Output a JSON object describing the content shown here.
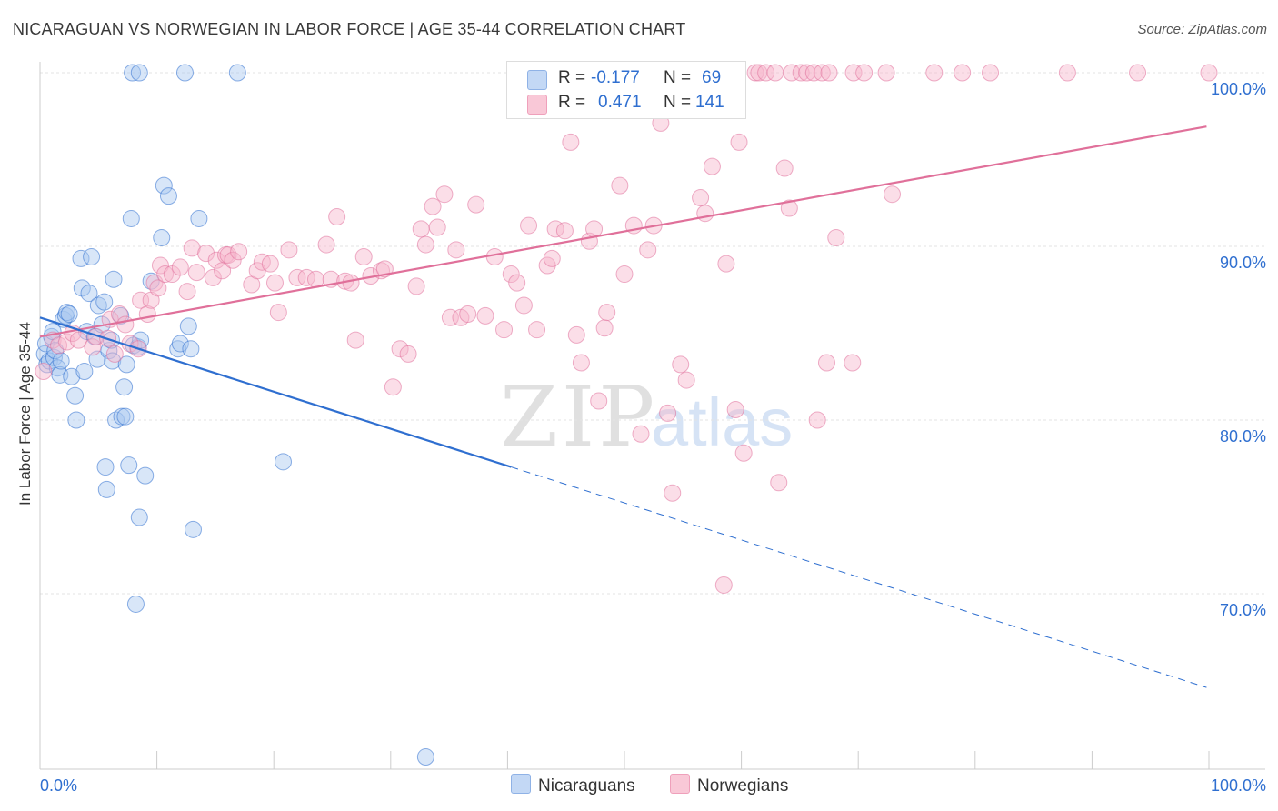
{
  "header": {
    "title": "NICARAGUAN VS NORWEGIAN IN LABOR FORCE | AGE 35-44 CORRELATION CHART",
    "source": "Source: ZipAtlas.com"
  },
  "watermark": {
    "zip": "ZIP",
    "atlas": "atlas"
  },
  "legend": {
    "r_label": "R =",
    "n_label": "N =",
    "nicaraguans": {
      "r": "-0.177",
      "n": "69"
    },
    "norwegians": {
      "r": "0.471",
      "n": "141"
    }
  },
  "bottom_legend": {
    "nicaraguans": "Nicaraguans",
    "norwegians": "Norwegians"
  },
  "chart_data": {
    "type": "scatter",
    "title": "NICARAGUAN VS NORWEGIAN IN LABOR FORCE | AGE 35-44 CORRELATION CHART",
    "xlabel": "",
    "ylabel": "In Labor Force | Age 35-44",
    "xlim": [
      0,
      100
    ],
    "ylim": [
      60,
      101
    ],
    "x_tick_labels": [
      "0.0%",
      "100.0%"
    ],
    "y_ticks": [
      {
        "value": 70,
        "label": "70.0%"
      },
      {
        "value": 80,
        "label": "80.0%"
      },
      {
        "value": 90,
        "label": "90.0%"
      },
      {
        "value": 100,
        "label": "100.0%"
      }
    ],
    "grid": true,
    "colors": {
      "nicaraguans_fill": "#a9c8f0",
      "nicaraguans_line": "#2f6fd0",
      "norwegians_fill": "#f7b6cb",
      "norwegians_line": "#e0709a",
      "axis_label": "#2f6fd0",
      "grid": "#e3e3e3"
    },
    "series": [
      {
        "name": "Nicaraguans",
        "r": -0.177,
        "n": 69,
        "trend": {
          "x0": 0,
          "y0": 85.9,
          "x1": 40.3,
          "y1": 77.3,
          "x_dash_end": 99.8,
          "y_dash_end": 64.6
        },
        "points": [
          [
            0.4,
            83.8
          ],
          [
            0.5,
            84.4
          ],
          [
            0.6,
            83.2
          ],
          [
            0.8,
            83.4
          ],
          [
            1.0,
            84.8
          ],
          [
            1.1,
            85.1
          ],
          [
            1.2,
            83.6
          ],
          [
            1.3,
            84.0
          ],
          [
            1.5,
            83.0
          ],
          [
            1.7,
            82.6
          ],
          [
            1.8,
            83.4
          ],
          [
            2.0,
            85.8
          ],
          [
            2.2,
            86.0
          ],
          [
            2.3,
            86.2
          ],
          [
            2.5,
            86.1
          ],
          [
            2.7,
            82.5
          ],
          [
            3.0,
            81.4
          ],
          [
            3.1,
            80.0
          ],
          [
            3.5,
            89.3
          ],
          [
            3.6,
            87.6
          ],
          [
            3.8,
            82.8
          ],
          [
            4.0,
            85.1
          ],
          [
            4.2,
            87.3
          ],
          [
            4.4,
            89.4
          ],
          [
            4.7,
            84.8
          ],
          [
            4.9,
            83.5
          ],
          [
            5.0,
            86.6
          ],
          [
            5.3,
            85.5
          ],
          [
            5.5,
            86.8
          ],
          [
            5.6,
            77.3
          ],
          [
            5.7,
            76.0
          ],
          [
            5.9,
            84.0
          ],
          [
            6.1,
            84.6
          ],
          [
            6.2,
            83.4
          ],
          [
            6.3,
            88.1
          ],
          [
            6.5,
            80.0
          ],
          [
            6.9,
            86.0
          ],
          [
            7.0,
            80.2
          ],
          [
            7.2,
            81.9
          ],
          [
            7.3,
            80.2
          ],
          [
            7.4,
            83.2
          ],
          [
            7.6,
            77.4
          ],
          [
            7.8,
            91.6
          ],
          [
            8.0,
            84.3
          ],
          [
            8.2,
            69.4
          ],
          [
            8.4,
            84.2
          ],
          [
            8.5,
            74.4
          ],
          [
            8.6,
            84.6
          ],
          [
            9.0,
            76.8
          ],
          [
            9.5,
            88.0
          ],
          [
            10.4,
            90.5
          ],
          [
            10.6,
            93.5
          ],
          [
            11.0,
            92.9
          ],
          [
            11.8,
            84.1
          ],
          [
            12.0,
            84.4
          ],
          [
            12.7,
            85.4
          ],
          [
            12.9,
            84.1
          ],
          [
            13.1,
            73.7
          ],
          [
            13.6,
            91.6
          ],
          [
            20.8,
            77.6
          ],
          [
            33.0,
            60.6
          ],
          [
            7.9,
            100
          ],
          [
            8.5,
            100
          ],
          [
            12.4,
            100
          ],
          [
            16.9,
            100
          ]
        ]
      },
      {
        "name": "Norwegians",
        "r": 0.471,
        "n": 141,
        "trend": {
          "x0": 0,
          "y0": 84.8,
          "x1": 99.8,
          "y1": 96.9
        },
        "points": [
          [
            0.3,
            82.8
          ],
          [
            1.1,
            84.6
          ],
          [
            1.6,
            84.3
          ],
          [
            2.3,
            84.5
          ],
          [
            2.8,
            85.0
          ],
          [
            3.3,
            84.6
          ],
          [
            4.5,
            84.2
          ],
          [
            4.8,
            84.8
          ],
          [
            5.8,
            84.7
          ],
          [
            6.0,
            85.8
          ],
          [
            6.4,
            83.8
          ],
          [
            6.8,
            86.1
          ],
          [
            7.3,
            85.5
          ],
          [
            7.7,
            84.4
          ],
          [
            8.4,
            84.1
          ],
          [
            8.6,
            86.9
          ],
          [
            9.2,
            86.1
          ],
          [
            9.5,
            86.9
          ],
          [
            9.8,
            87.9
          ],
          [
            10.1,
            87.6
          ],
          [
            10.3,
            88.9
          ],
          [
            10.7,
            88.4
          ],
          [
            11.3,
            88.4
          ],
          [
            12.0,
            88.8
          ],
          [
            12.6,
            87.4
          ],
          [
            13.0,
            89.9
          ],
          [
            13.4,
            88.5
          ],
          [
            14.2,
            89.6
          ],
          [
            14.8,
            88.2
          ],
          [
            15.1,
            89.2
          ],
          [
            15.6,
            88.6
          ],
          [
            15.9,
            89.5
          ],
          [
            16.1,
            89.5
          ],
          [
            16.5,
            89.2
          ],
          [
            17.0,
            89.7
          ],
          [
            18.1,
            87.8
          ],
          [
            18.6,
            88.6
          ],
          [
            19.0,
            89.1
          ],
          [
            19.7,
            89.0
          ],
          [
            20.1,
            87.9
          ],
          [
            20.4,
            86.2
          ],
          [
            21.3,
            89.8
          ],
          [
            22.0,
            88.2
          ],
          [
            22.8,
            88.2
          ],
          [
            23.6,
            88.1
          ],
          [
            24.5,
            90.1
          ],
          [
            24.9,
            88.1
          ],
          [
            25.4,
            91.7
          ],
          [
            26.1,
            88.0
          ],
          [
            26.6,
            87.9
          ],
          [
            27.0,
            84.6
          ],
          [
            27.7,
            89.4
          ],
          [
            28.3,
            88.3
          ],
          [
            29.2,
            88.6
          ],
          [
            29.5,
            88.7
          ],
          [
            30.2,
            81.9
          ],
          [
            30.8,
            84.1
          ],
          [
            31.5,
            83.8
          ],
          [
            32.2,
            87.7
          ],
          [
            32.6,
            91.0
          ],
          [
            33.0,
            90.1
          ],
          [
            33.6,
            92.3
          ],
          [
            34.0,
            91.1
          ],
          [
            34.6,
            93.0
          ],
          [
            35.1,
            85.9
          ],
          [
            35.6,
            89.8
          ],
          [
            36.0,
            85.9
          ],
          [
            36.6,
            86.1
          ],
          [
            37.3,
            92.4
          ],
          [
            38.1,
            86.0
          ],
          [
            38.9,
            89.4
          ],
          [
            39.7,
            85.2
          ],
          [
            40.3,
            88.4
          ],
          [
            40.8,
            87.9
          ],
          [
            41.4,
            86.6
          ],
          [
            41.8,
            91.2
          ],
          [
            42.5,
            85.2
          ],
          [
            43.4,
            88.9
          ],
          [
            43.8,
            89.3
          ],
          [
            44.1,
            91.0
          ],
          [
            44.9,
            90.9
          ],
          [
            45.4,
            96.0
          ],
          [
            45.9,
            84.9
          ],
          [
            46.3,
            83.3
          ],
          [
            47.0,
            90.3
          ],
          [
            47.4,
            91.0
          ],
          [
            47.8,
            81.1
          ],
          [
            48.3,
            85.3
          ],
          [
            48.5,
            86.2
          ],
          [
            49.6,
            93.5
          ],
          [
            50.0,
            88.4
          ],
          [
            50.8,
            91.2
          ],
          [
            51.4,
            79.2
          ],
          [
            52.0,
            89.8
          ],
          [
            52.5,
            91.2
          ],
          [
            53.1,
            97.1
          ],
          [
            53.7,
            80.4
          ],
          [
            54.1,
            75.8
          ],
          [
            54.8,
            83.2
          ],
          [
            55.3,
            82.3
          ],
          [
            56.5,
            92.8
          ],
          [
            56.9,
            91.9
          ],
          [
            57.5,
            94.6
          ],
          [
            58.7,
            89.0
          ],
          [
            59.5,
            80.6
          ],
          [
            59.8,
            96.0
          ],
          [
            60.2,
            78.1
          ],
          [
            63.2,
            76.4
          ],
          [
            63.7,
            94.5
          ],
          [
            64.1,
            92.2
          ],
          [
            66.5,
            80.0
          ],
          [
            67.3,
            83.3
          ],
          [
            68.1,
            90.5
          ],
          [
            69.5,
            83.3
          ],
          [
            72.9,
            93.0
          ],
          [
            58.5,
            70.5
          ],
          [
            61.2,
            100
          ],
          [
            61.5,
            100
          ],
          [
            62.1,
            100
          ],
          [
            62.9,
            100
          ],
          [
            64.3,
            100
          ],
          [
            65.1,
            100
          ],
          [
            65.6,
            100
          ],
          [
            66.2,
            100
          ],
          [
            66.9,
            100
          ],
          [
            67.5,
            100
          ],
          [
            69.6,
            100
          ],
          [
            70.5,
            100
          ],
          [
            72.4,
            100
          ],
          [
            76.5,
            100
          ],
          [
            78.9,
            100
          ],
          [
            81.3,
            100
          ],
          [
            87.9,
            100
          ],
          [
            93.9,
            100
          ],
          [
            100.0,
            100
          ]
        ]
      }
    ]
  }
}
